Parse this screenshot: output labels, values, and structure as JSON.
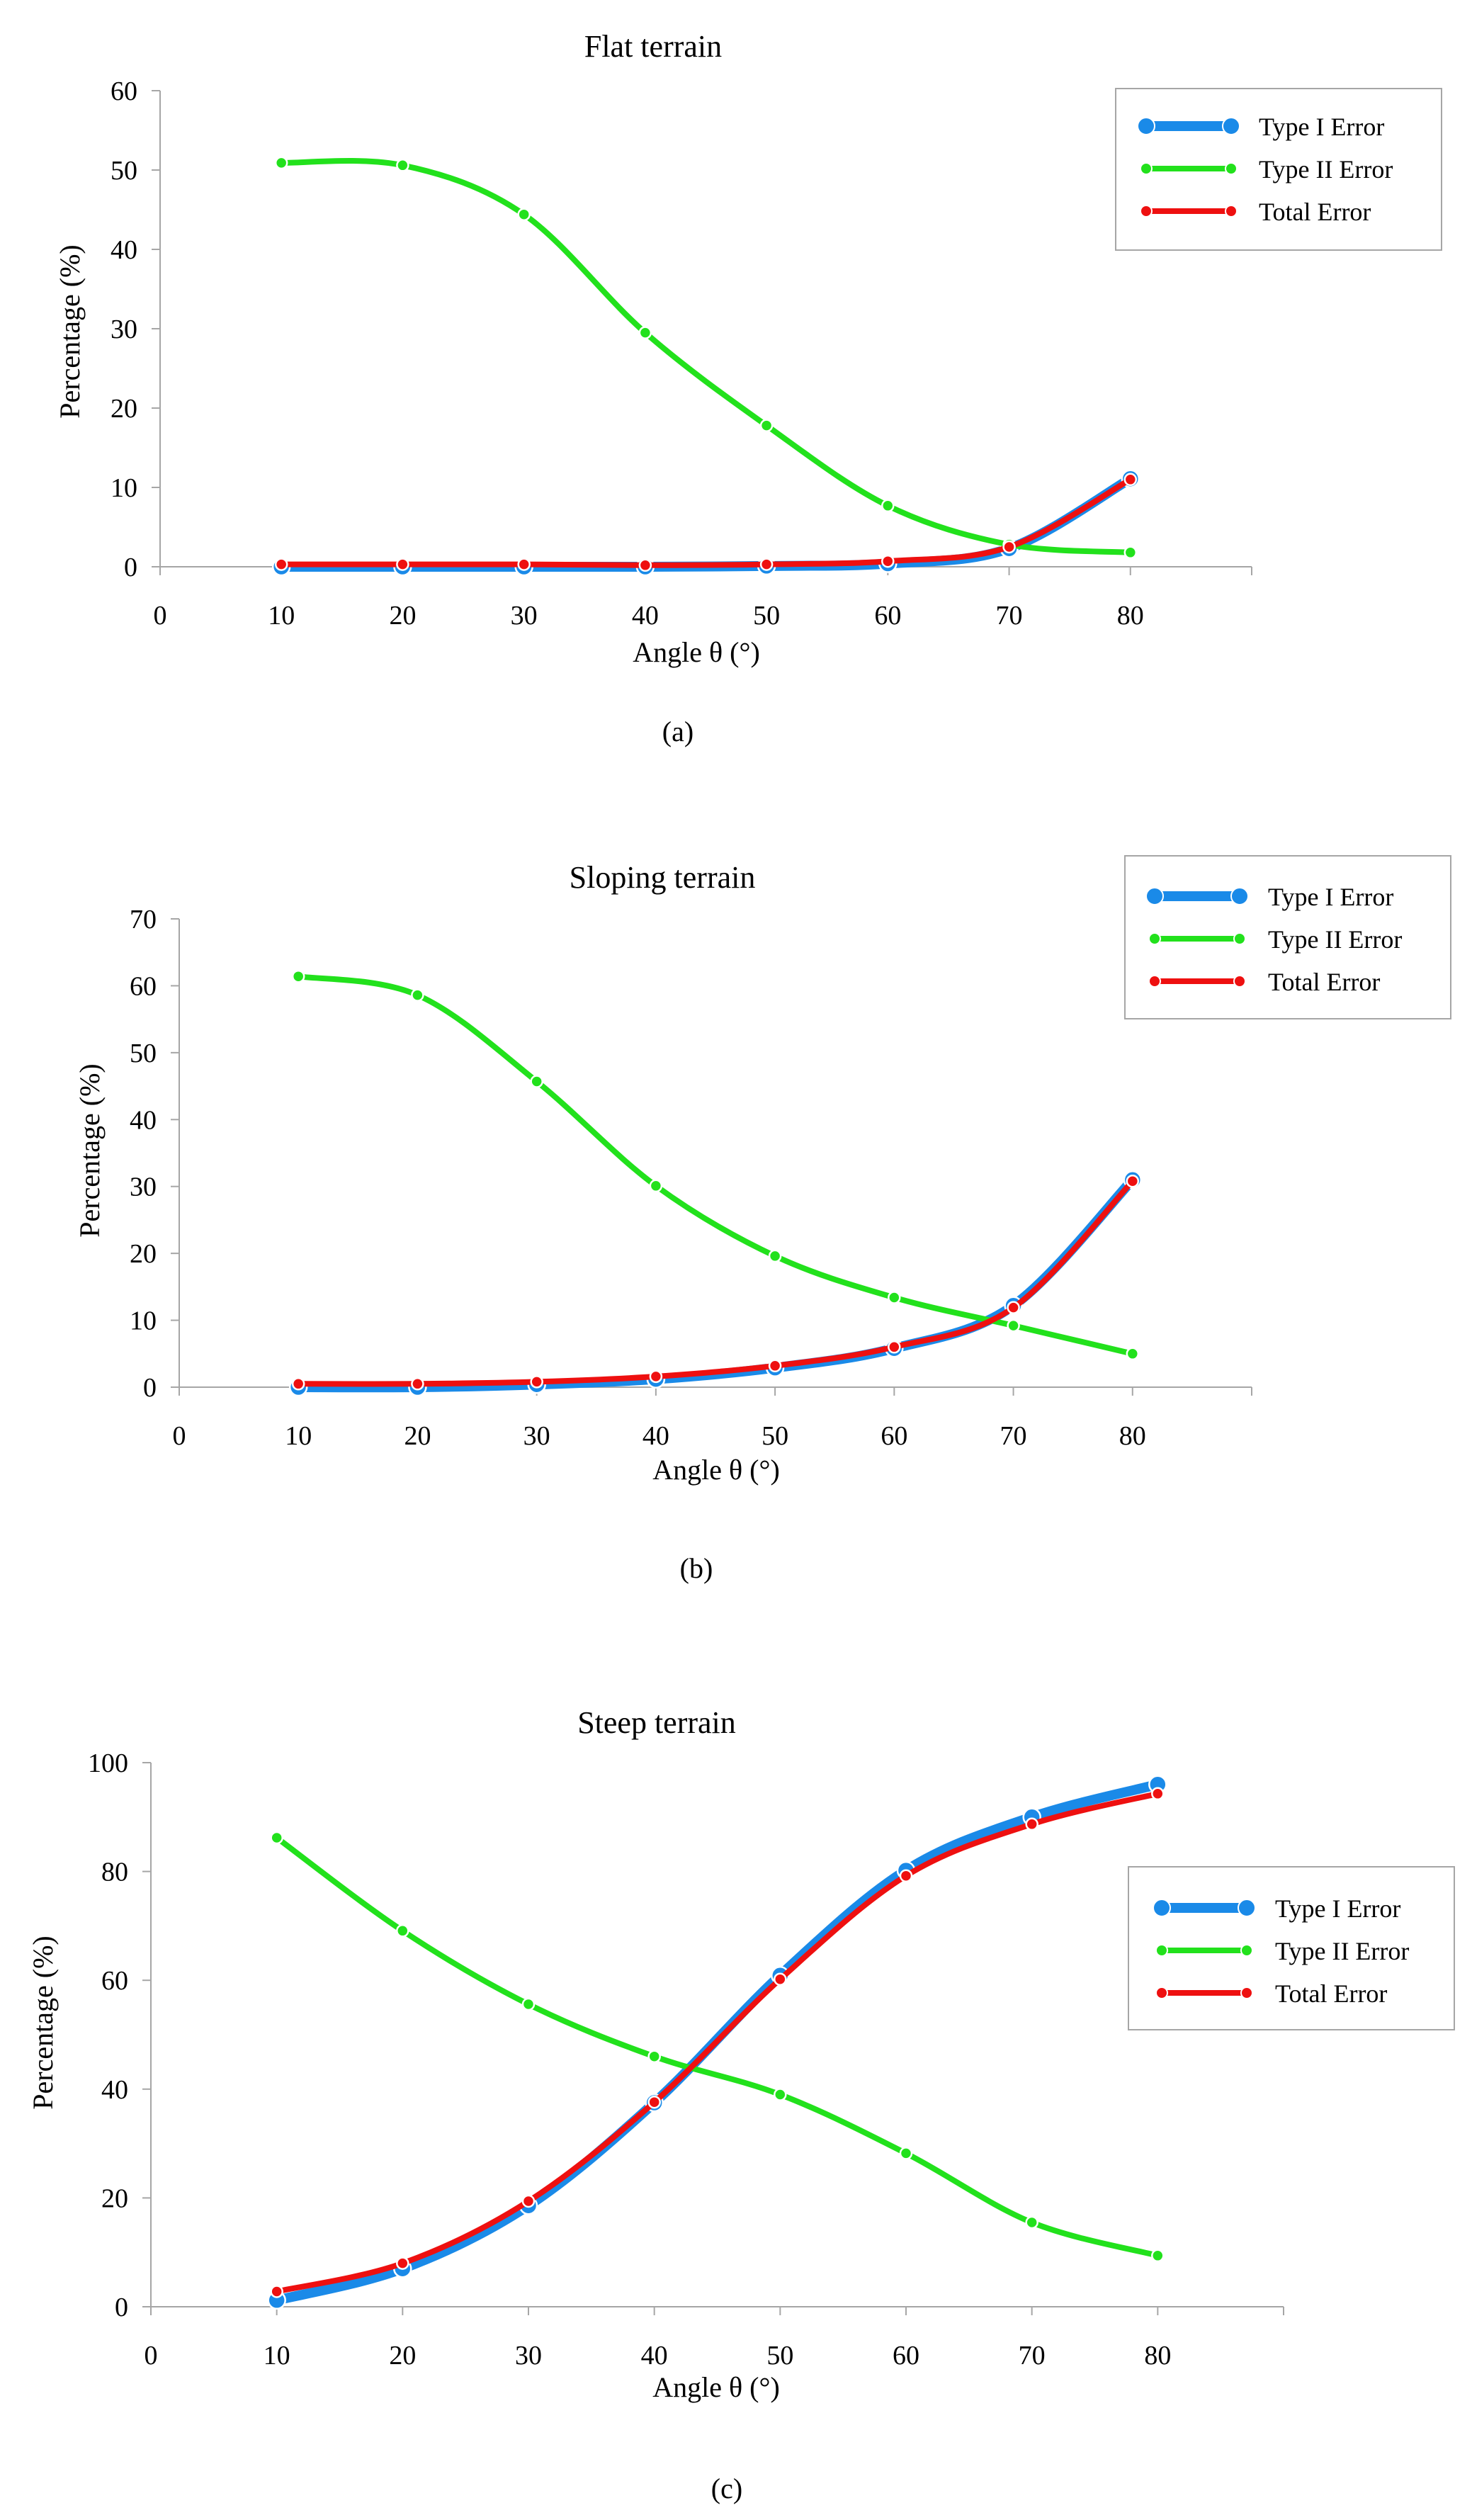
{
  "colors": {
    "type1": "#1a8ae8",
    "type2": "#22e11c",
    "total": "#ee1010",
    "axis": "#a6a6a6"
  },
  "chart_data": [
    {
      "type": "line",
      "title": "Flat terrain",
      "caption": "(a)",
      "xlabel": "Angle θ (°)",
      "ylabel": "Percentage (%)",
      "xlim": [
        0,
        90
      ],
      "ylim": [
        0,
        60
      ],
      "xticks": [
        0,
        10,
        20,
        30,
        40,
        50,
        60,
        70,
        80
      ],
      "yticks": [
        0,
        10,
        20,
        30,
        40,
        50,
        60
      ],
      "x": [
        10,
        20,
        30,
        40,
        50,
        60,
        70,
        80
      ],
      "legend_position": "top-right",
      "series": [
        {
          "name": "Type I Error",
          "values": [
            0,
            0,
            0,
            0,
            0.1,
            0.4,
            2.3,
            11.1
          ]
        },
        {
          "name": "Type II Error",
          "values": [
            50.9,
            50.6,
            44.4,
            29.5,
            17.8,
            7.7,
            2.8,
            1.8
          ]
        },
        {
          "name": "Total Error",
          "values": [
            0.3,
            0.3,
            0.3,
            0.2,
            0.3,
            0.7,
            2.5,
            11.0
          ]
        }
      ]
    },
    {
      "type": "line",
      "title": "Sloping terrain",
      "caption": "(b)",
      "xlabel": "Angle θ (°)",
      "ylabel": "Percentage (%)",
      "xlim": [
        0,
        90
      ],
      "ylim": [
        0,
        70
      ],
      "xticks": [
        0,
        10,
        20,
        30,
        40,
        50,
        60,
        70,
        80
      ],
      "yticks": [
        0,
        10,
        20,
        30,
        40,
        50,
        60,
        70
      ],
      "x": [
        10,
        20,
        30,
        40,
        50,
        60,
        70,
        80
      ],
      "legend_position": "top-right",
      "series": [
        {
          "name": "Type I Error",
          "values": [
            0,
            0,
            0.4,
            1.2,
            2.9,
            5.8,
            12.2,
            31.0
          ]
        },
        {
          "name": "Type II Error",
          "values": [
            61.4,
            58.6,
            45.7,
            30.1,
            19.6,
            13.4,
            9.2,
            5.0
          ]
        },
        {
          "name": "Total Error",
          "values": [
            0.5,
            0.5,
            0.8,
            1.6,
            3.2,
            6.0,
            11.9,
            30.8
          ]
        }
      ]
    },
    {
      "type": "line",
      "title": "Steep terrain",
      "caption": "(c)",
      "xlabel": "Angle θ (°)",
      "ylabel": "Percentage (%)",
      "xlim": [
        0,
        90
      ],
      "ylim": [
        0,
        100
      ],
      "xticks": [
        0,
        10,
        20,
        30,
        40,
        50,
        60,
        70,
        80
      ],
      "yticks": [
        0,
        20,
        40,
        60,
        80,
        100
      ],
      "x": [
        10,
        20,
        30,
        40,
        50,
        60,
        70,
        80
      ],
      "legend_position": "right",
      "series": [
        {
          "name": "Type I Error",
          "values": [
            1.2,
            7.0,
            18.6,
            37.5,
            60.9,
            80.2,
            90.0,
            96.0
          ]
        },
        {
          "name": "Type II Error",
          "values": [
            86.2,
            69.1,
            55.6,
            46.0,
            39.0,
            28.2,
            15.5,
            9.4
          ]
        },
        {
          "name": "Total Error",
          "values": [
            2.8,
            8.0,
            19.4,
            37.6,
            60.2,
            79.2,
            88.7,
            94.3
          ]
        }
      ]
    }
  ]
}
